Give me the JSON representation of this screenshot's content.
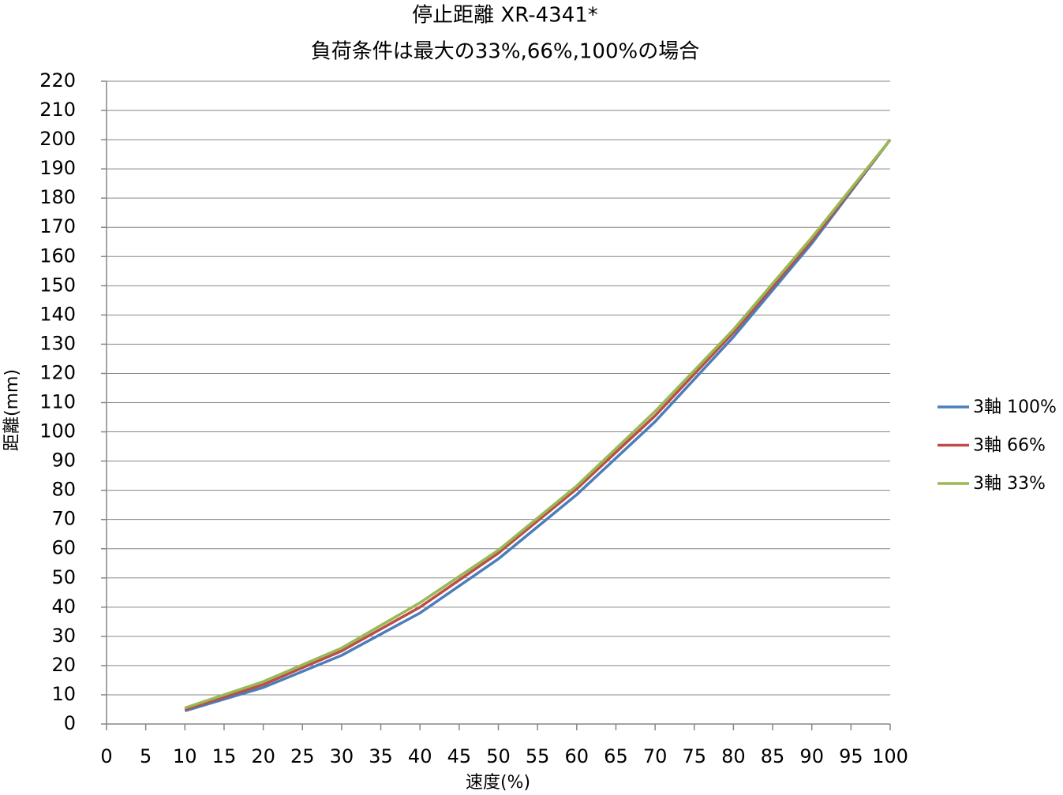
{
  "chart_data": {
    "type": "line",
    "title": "停止距離 XR-4341*",
    "subtitle": "負荷条件は最大の33%,66%,100%の場合",
    "x_label": "速度(%)",
    "y_label": "距離(mm)",
    "x": [
      10,
      20,
      30,
      40,
      50,
      60,
      70,
      80,
      90,
      100
    ],
    "series": [
      {
        "name": "3軸 100%",
        "color": "#4a7ebb",
        "values": [
          4.5,
          12.5,
          23.5,
          38,
          56.5,
          78.5,
          103.5,
          132.5,
          164.5,
          200
        ]
      },
      {
        "name": "3軸 66%",
        "color": "#be4b48",
        "values": [
          5,
          13.5,
          25,
          40,
          58.5,
          80.5,
          105.5,
          134,
          165.5,
          200
        ]
      },
      {
        "name": "3軸 33%",
        "color": "#98b954",
        "values": [
          5.5,
          14.5,
          26,
          41.5,
          59.5,
          81.5,
          107,
          135,
          166.5,
          200
        ]
      }
    ],
    "xlim": [
      0,
      100
    ],
    "xticks": [
      0,
      5,
      10,
      15,
      20,
      25,
      30,
      35,
      40,
      45,
      50,
      55,
      60,
      65,
      70,
      75,
      80,
      85,
      90,
      95,
      100
    ],
    "ylim": [
      0,
      220
    ],
    "yticks": [
      0,
      10,
      20,
      30,
      40,
      50,
      60,
      70,
      80,
      90,
      100,
      110,
      120,
      130,
      140,
      150,
      160,
      170,
      180,
      190,
      200,
      210,
      220
    ],
    "grid": true,
    "legend_position": "right"
  }
}
